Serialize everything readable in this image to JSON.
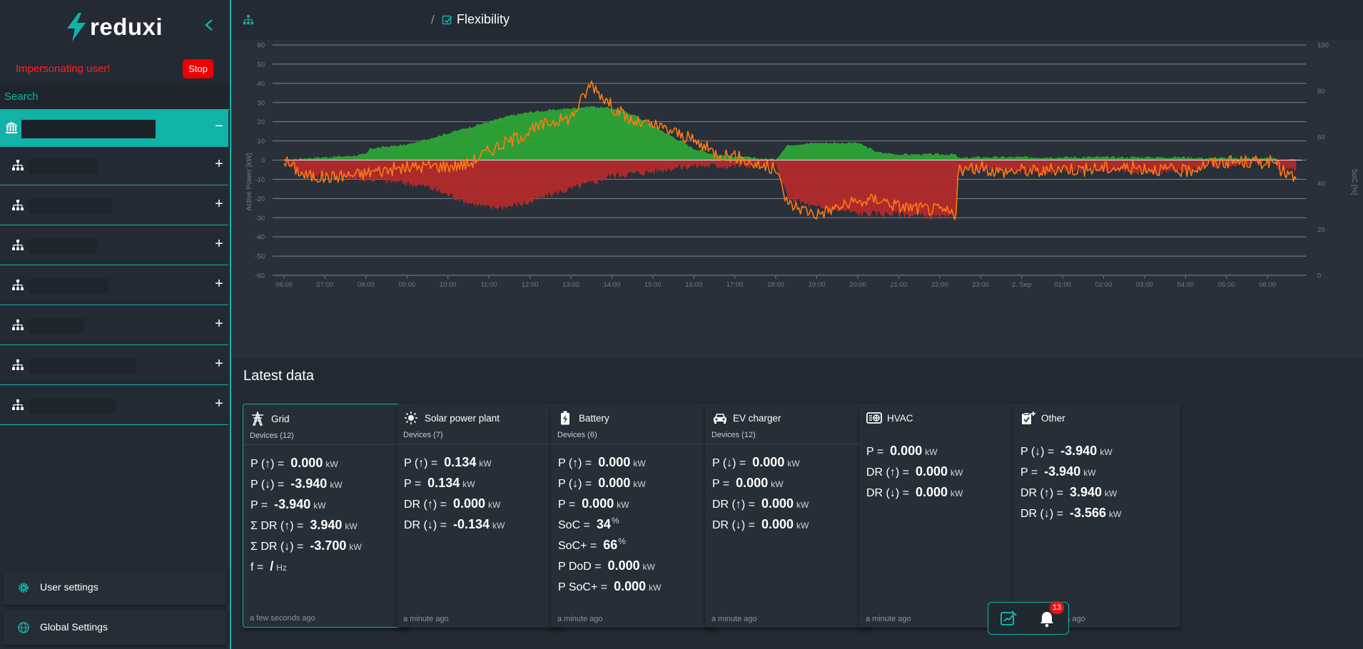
{
  "app": {
    "logo_text": "reduxi"
  },
  "sidebar": {
    "impersonating_text": "Impersonating user!",
    "stop_label": "Stop",
    "search_placeholder": "Search",
    "active_item_sign": "−",
    "item_sign": "+",
    "user_settings_label": "User settings",
    "global_settings_label": "Global Settings"
  },
  "breadcrumb": {
    "separator": "/",
    "page": "Flexibility"
  },
  "chart_data": {
    "type": "area",
    "ylabel": "Active Power [kW]",
    "y2label": "SoC [%]",
    "ylim": [
      -60,
      60
    ],
    "y2lim": [
      0,
      100
    ],
    "yticks": [
      "60",
      "50",
      "40",
      "30",
      "20",
      "10",
      "0",
      "-10",
      "-20",
      "-30",
      "-40",
      "-50",
      "-60"
    ],
    "y2ticks": [
      "100",
      "80",
      "60",
      "40",
      "20",
      "0"
    ],
    "xticks": [
      "06:00",
      "07:00",
      "08:00",
      "09:00",
      "10:00",
      "11:00",
      "12:00",
      "13:00",
      "14:00",
      "15:00",
      "16:00",
      "17:00",
      "18:00",
      "19:00",
      "20:00",
      "21:00",
      "22:00",
      "23:00",
      "2. Sep",
      "01:00",
      "02:00",
      "03:00",
      "04:00",
      "05:00",
      "06:00"
    ],
    "grid": true,
    "colors": {
      "upward": "#2ea836",
      "downward": "#b62a2a",
      "power": "#ff7a14"
    },
    "x_hours": [
      0,
      0.5,
      1,
      1.5,
      2,
      2.1,
      2.5,
      3,
      3.5,
      4,
      4.5,
      5,
      5.5,
      6,
      6.5,
      7,
      7.5,
      8,
      8.5,
      9,
      9.5,
      10,
      10.5,
      11,
      11.5,
      12,
      12.3,
      12.35,
      13,
      13.6,
      14,
      14.5,
      15,
      15.5,
      16,
      16.4,
      16.45,
      17,
      17.5,
      18,
      18.5,
      19,
      19.5,
      20,
      20.5,
      21,
      21.5,
      22,
      22.5,
      23,
      23.5,
      24,
      24.2,
      24.25,
      24.7
    ],
    "series": [
      {
        "values": [
          0,
          1,
          1.5,
          2,
          3,
          6,
          7,
          8,
          11,
          14,
          17,
          20,
          23,
          25,
          26,
          27,
          28,
          27,
          24,
          18,
          12,
          6,
          3,
          2,
          1,
          0.5,
          8,
          8,
          9,
          9,
          9,
          4,
          3,
          3,
          3,
          3,
          1,
          1.5,
          1.5,
          1.5,
          1.5,
          1.5,
          1.5,
          1.5,
          1.5,
          1.5,
          1.5,
          1.5,
          1,
          1,
          1,
          1,
          1,
          0,
          0
        ]
      },
      {
        "values": [
          0,
          -8,
          -8,
          -9,
          -10,
          -10,
          -11,
          -12,
          -14,
          -18,
          -22,
          -25,
          -24,
          -22,
          -18,
          -15,
          -12,
          -8,
          -7,
          -6,
          -4,
          -3,
          -3,
          -3,
          -3,
          -3,
          -20,
          -20,
          -25,
          -26,
          -28,
          -28,
          -28,
          -29,
          -30,
          -30,
          -5,
          -5,
          -5,
          -6,
          -6,
          -5,
          -5,
          -5,
          -5,
          -6,
          -6,
          -6,
          -3,
          -2,
          -2,
          -1,
          -1,
          -4,
          -5
        ]
      },
      {
        "values": [
          0,
          -8,
          -9,
          -8,
          -7,
          -6,
          -5,
          -4,
          -3,
          -3,
          -2,
          5,
          10,
          15,
          20,
          22,
          40,
          28,
          20,
          18,
          15,
          10,
          4,
          2,
          -2,
          -5,
          -23,
          -23,
          -28,
          -24,
          -22,
          -20,
          -24,
          -25,
          -26,
          -28,
          -6,
          -4,
          -6,
          -5,
          -6,
          -4,
          -5,
          -4,
          -4,
          -4,
          -5,
          -6,
          -2,
          -1,
          -1,
          -1,
          -1,
          -4,
          -10
        ]
      }
    ]
  },
  "latest": {
    "title": "Latest data",
    "cards": [
      {
        "title": "Grid",
        "devices": "Devices (12)",
        "time": "a few seconds ago",
        "rows": [
          {
            "label": "P (↑) =",
            "value": "0.000",
            "unit": "kW"
          },
          {
            "label": "P (↓) =",
            "value": "-3.940",
            "unit": "kW"
          },
          {
            "label": "P =",
            "value": "-3.940",
            "unit": "kW"
          },
          {
            "label": "Σ DR (↑) =",
            "value": "3.940",
            "unit": "kW"
          },
          {
            "label": "Σ DR (↓) =",
            "value": "-3.700",
            "unit": "kW"
          },
          {
            "label": "f =",
            "value": "/",
            "unit": "Hz"
          }
        ]
      },
      {
        "title": "Solar power plant",
        "devices": "Devices (7)",
        "time": "a minute ago",
        "rows": [
          {
            "label": "P (↑) =",
            "value": "0.134",
            "unit": "kW"
          },
          {
            "label": "P =",
            "value": "0.134",
            "unit": "kW"
          },
          {
            "label": "DR (↑) =",
            "value": "0.000",
            "unit": "kW"
          },
          {
            "label": "DR (↓) =",
            "value": "-0.134",
            "unit": "kW"
          }
        ]
      },
      {
        "title": "Battery",
        "devices": "Devices (6)",
        "time": "a minute ago",
        "rows": [
          {
            "label": "P (↑) =",
            "value": "0.000",
            "unit": "kW"
          },
          {
            "label": "P (↓) =",
            "value": "0.000",
            "unit": "kW"
          },
          {
            "label": "P =",
            "value": "0.000",
            "unit": "kW"
          },
          {
            "label": "SoC =",
            "value": "34",
            "unit": "%"
          },
          {
            "label": "SoC+ =",
            "value": "66",
            "unit": "%"
          },
          {
            "label": "P DoD =",
            "value": "0.000",
            "unit": "kW"
          },
          {
            "label": "P SoC+ =",
            "value": "0.000",
            "unit": "kW"
          }
        ]
      },
      {
        "title": "EV charger",
        "devices": "Devices (12)",
        "time": "a minute ago",
        "rows": [
          {
            "label": "P (↓) =",
            "value": "0.000",
            "unit": "kW"
          },
          {
            "label": "P =",
            "value": "0.000",
            "unit": "kW"
          },
          {
            "label": "DR (↑) =",
            "value": "0.000",
            "unit": "kW"
          },
          {
            "label": "DR (↓) =",
            "value": "0.000",
            "unit": "kW"
          }
        ]
      },
      {
        "title": "HVAC",
        "devices": "",
        "time": "a minute ago",
        "rows": [
          {
            "label": "P =",
            "value": "0.000",
            "unit": "kW"
          },
          {
            "label": "DR (↑) =",
            "value": "0.000",
            "unit": "kW"
          },
          {
            "label": "DR (↓) =",
            "value": "0.000",
            "unit": "kW"
          }
        ]
      },
      {
        "title": "Other",
        "devices": "",
        "time": "a few seconds ago",
        "rows": [
          {
            "label": "P (↓) =",
            "value": "-3.940",
            "unit": "kW"
          },
          {
            "label": "P =",
            "value": "-3.940",
            "unit": "kW"
          },
          {
            "label": "DR (↑) =",
            "value": "3.940",
            "unit": "kW"
          },
          {
            "label": "DR (↓) =",
            "value": "-3.566",
            "unit": "kW"
          }
        ]
      }
    ]
  },
  "notifications": {
    "count": "13"
  }
}
